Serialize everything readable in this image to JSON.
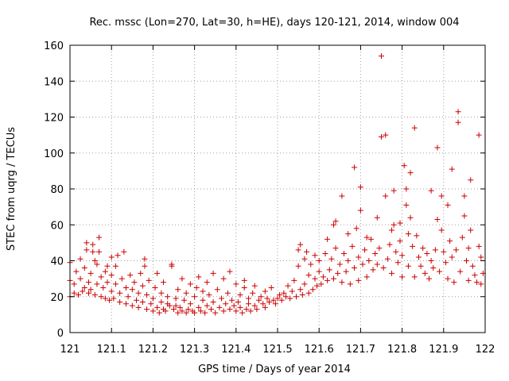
{
  "chart_data": {
    "type": "scatter",
    "title": "Rec. mssc (Lon=270, Lat=30, h=HE), days 120-121, 2014, window 004",
    "xlabel": "GPS time / Days of year 2014",
    "ylabel": "STEC from uqrg / TECUs",
    "xlim": [
      121,
      122
    ],
    "ylim": [
      0,
      160
    ],
    "xticks": [
      121,
      121.1,
      121.2,
      121.3,
      121.4,
      121.5,
      121.6,
      121.7,
      121.8,
      121.9,
      122
    ],
    "yticks": [
      0,
      20,
      40,
      60,
      80,
      100,
      120,
      140,
      160
    ],
    "xtick_labels": [
      "121",
      "121.1",
      "121.2",
      "121.3",
      "121.4",
      "121.5",
      "121.6",
      "121.7",
      "121.8",
      "121.9",
      "122"
    ],
    "ytick_labels": [
      "0",
      "20",
      "40",
      "60",
      "80",
      "100",
      "120",
      "140",
      "160"
    ],
    "grid": true,
    "marker": "+",
    "color": "#cc0000",
    "series": [
      {
        "name": "STEC",
        "points": [
          [
            121.0,
            20
          ],
          [
            121.0,
            29
          ],
          [
            121.0,
            39
          ],
          [
            121.01,
            22
          ],
          [
            121.01,
            27
          ],
          [
            121.015,
            34
          ],
          [
            121.02,
            21
          ],
          [
            121.025,
            30
          ],
          [
            121.025,
            41
          ],
          [
            121.03,
            23
          ],
          [
            121.035,
            25
          ],
          [
            121.035,
            36
          ],
          [
            121.04,
            46
          ],
          [
            121.04,
            50
          ],
          [
            121.045,
            22
          ],
          [
            121.045,
            28
          ],
          [
            121.05,
            24
          ],
          [
            121.05,
            33
          ],
          [
            121.055,
            45
          ],
          [
            121.055,
            49
          ],
          [
            121.06,
            21
          ],
          [
            121.06,
            40
          ],
          [
            121.065,
            27
          ],
          [
            121.065,
            38
          ],
          [
            121.07,
            53
          ],
          [
            121.07,
            45
          ],
          [
            121.075,
            20
          ],
          [
            121.075,
            31
          ],
          [
            121.08,
            25
          ],
          [
            121.085,
            19
          ],
          [
            121.085,
            34
          ],
          [
            121.09,
            28
          ],
          [
            121.09,
            37
          ],
          [
            121.095,
            18
          ],
          [
            121.1,
            23
          ],
          [
            121.1,
            32
          ],
          [
            121.1,
            42
          ],
          [
            121.105,
            19
          ],
          [
            121.11,
            27
          ],
          [
            121.11,
            37
          ],
          [
            121.115,
            43
          ],
          [
            121.12,
            17
          ],
          [
            121.12,
            22
          ],
          [
            121.125,
            30
          ],
          [
            121.13,
            45
          ],
          [
            121.135,
            16
          ],
          [
            121.135,
            25
          ],
          [
            121.14,
            20
          ],
          [
            121.145,
            32
          ],
          [
            121.15,
            15
          ],
          [
            121.15,
            24
          ],
          [
            121.155,
            28
          ],
          [
            121.16,
            18
          ],
          [
            121.165,
            14
          ],
          [
            121.165,
            22
          ],
          [
            121.17,
            33
          ],
          [
            121.175,
            17
          ],
          [
            121.175,
            26
          ],
          [
            121.18,
            41
          ],
          [
            121.18,
            37
          ],
          [
            121.185,
            13
          ],
          [
            121.185,
            21
          ],
          [
            121.19,
            29
          ],
          [
            121.195,
            16
          ],
          [
            121.2,
            12
          ],
          [
            121.2,
            19
          ],
          [
            121.205,
            25
          ],
          [
            121.21,
            14
          ],
          [
            121.21,
            33
          ],
          [
            121.215,
            11
          ],
          [
            121.22,
            17
          ],
          [
            121.22,
            22
          ],
          [
            121.225,
            13
          ],
          [
            121.225,
            28
          ],
          [
            121.23,
            12
          ],
          [
            121.235,
            16
          ],
          [
            121.235,
            20
          ],
          [
            121.24,
            15
          ],
          [
            121.245,
            37
          ],
          [
            121.245,
            38
          ],
          [
            121.25,
            13
          ],
          [
            121.255,
            15
          ],
          [
            121.255,
            19
          ],
          [
            121.26,
            11
          ],
          [
            121.26,
            24
          ],
          [
            121.265,
            14
          ],
          [
            121.27,
            12
          ],
          [
            121.27,
            30
          ],
          [
            121.275,
            18
          ],
          [
            121.28,
            11
          ],
          [
            121.28,
            22
          ],
          [
            121.285,
            13
          ],
          [
            121.29,
            16
          ],
          [
            121.29,
            27
          ],
          [
            121.295,
            12
          ],
          [
            121.3,
            11
          ],
          [
            121.3,
            20
          ],
          [
            121.305,
            25
          ],
          [
            121.31,
            14
          ],
          [
            121.31,
            31
          ],
          [
            121.315,
            12
          ],
          [
            121.32,
            18
          ],
          [
            121.32,
            23
          ],
          [
            121.325,
            11
          ],
          [
            121.33,
            15
          ],
          [
            121.33,
            28
          ],
          [
            121.335,
            21
          ],
          [
            121.34,
            13
          ],
          [
            121.345,
            17
          ],
          [
            121.345,
            33
          ],
          [
            121.35,
            11
          ],
          [
            121.355,
            24
          ],
          [
            121.36,
            14
          ],
          [
            121.365,
            19
          ],
          [
            121.37,
            12
          ],
          [
            121.37,
            30
          ],
          [
            121.375,
            16
          ],
          [
            121.38,
            22
          ],
          [
            121.385,
            13
          ],
          [
            121.385,
            34
          ],
          [
            121.39,
            18
          ],
          [
            121.395,
            15
          ],
          [
            121.4,
            12
          ],
          [
            121.4,
            27
          ],
          [
            121.405,
            17
          ],
          [
            121.41,
            14
          ],
          [
            121.41,
            21
          ],
          [
            121.415,
            11
          ],
          [
            121.42,
            25
          ],
          [
            121.42,
            29
          ],
          [
            121.425,
            13
          ],
          [
            121.43,
            16
          ],
          [
            121.43,
            19
          ],
          [
            121.435,
            12
          ],
          [
            121.44,
            22
          ],
          [
            121.445,
            15
          ],
          [
            121.445,
            26
          ],
          [
            121.45,
            13
          ],
          [
            121.455,
            18
          ],
          [
            121.46,
            20
          ],
          [
            121.465,
            16
          ],
          [
            121.47,
            14
          ],
          [
            121.47,
            23
          ],
          [
            121.475,
            19
          ],
          [
            121.48,
            17
          ],
          [
            121.485,
            25
          ],
          [
            121.49,
            18
          ],
          [
            121.495,
            16
          ],
          [
            121.5,
            19
          ],
          [
            121.505,
            21
          ],
          [
            121.51,
            18
          ],
          [
            121.515,
            22
          ],
          [
            121.52,
            20
          ],
          [
            121.525,
            26
          ],
          [
            121.53,
            19
          ],
          [
            121.535,
            23
          ],
          [
            121.54,
            29
          ],
          [
            121.545,
            20
          ],
          [
            121.55,
            37
          ],
          [
            121.55,
            46
          ],
          [
            121.555,
            24
          ],
          [
            121.555,
            49
          ],
          [
            121.56,
            21
          ],
          [
            121.565,
            27
          ],
          [
            121.565,
            41
          ],
          [
            121.57,
            45
          ],
          [
            121.575,
            22
          ],
          [
            121.575,
            32
          ],
          [
            121.58,
            38
          ],
          [
            121.585,
            24
          ],
          [
            121.59,
            30
          ],
          [
            121.59,
            43
          ],
          [
            121.595,
            26
          ],
          [
            121.6,
            34
          ],
          [
            121.6,
            40
          ],
          [
            121.605,
            27
          ],
          [
            121.61,
            31
          ],
          [
            121.615,
            44
          ],
          [
            121.62,
            29
          ],
          [
            121.62,
            52
          ],
          [
            121.625,
            35
          ],
          [
            121.63,
            41
          ],
          [
            121.635,
            30
          ],
          [
            121.635,
            60
          ],
          [
            121.64,
            62
          ],
          [
            121.64,
            47
          ],
          [
            121.645,
            33
          ],
          [
            121.65,
            38
          ],
          [
            121.655,
            76
          ],
          [
            121.655,
            28
          ],
          [
            121.66,
            44
          ],
          [
            121.665,
            34
          ],
          [
            121.67,
            55
          ],
          [
            121.67,
            40
          ],
          [
            121.675,
            27
          ],
          [
            121.68,
            48
          ],
          [
            121.685,
            92
          ],
          [
            121.685,
            36
          ],
          [
            121.69,
            58
          ],
          [
            121.695,
            29
          ],
          [
            121.695,
            42
          ],
          [
            121.7,
            81
          ],
          [
            121.7,
            68
          ],
          [
            121.705,
            38
          ],
          [
            121.71,
            46
          ],
          [
            121.715,
            53
          ],
          [
            121.715,
            31
          ],
          [
            121.72,
            40
          ],
          [
            121.725,
            52
          ],
          [
            121.73,
            35
          ],
          [
            121.735,
            44
          ],
          [
            121.74,
            64
          ],
          [
            121.74,
            38
          ],
          [
            121.745,
            47
          ],
          [
            121.75,
            154
          ],
          [
            121.75,
            109
          ],
          [
            121.755,
            36
          ],
          [
            121.76,
            110
          ],
          [
            121.76,
            76
          ],
          [
            121.765,
            41
          ],
          [
            121.77,
            49
          ],
          [
            121.775,
            57
          ],
          [
            121.775,
            33
          ],
          [
            121.78,
            79
          ],
          [
            121.78,
            60
          ],
          [
            121.785,
            45
          ],
          [
            121.79,
            39
          ],
          [
            121.795,
            61
          ],
          [
            121.795,
            51
          ],
          [
            121.8,
            31
          ],
          [
            121.8,
            43
          ],
          [
            121.805,
            93
          ],
          [
            121.81,
            80
          ],
          [
            121.81,
            71
          ],
          [
            121.815,
            55
          ],
          [
            121.815,
            37
          ],
          [
            121.82,
            89
          ],
          [
            121.82,
            64
          ],
          [
            121.825,
            48
          ],
          [
            121.83,
            114
          ],
          [
            121.83,
            31
          ],
          [
            121.835,
            54
          ],
          [
            121.84,
            42
          ],
          [
            121.845,
            37
          ],
          [
            121.85,
            47
          ],
          [
            121.855,
            33
          ],
          [
            121.86,
            44
          ],
          [
            121.865,
            30
          ],
          [
            121.87,
            79
          ],
          [
            121.87,
            40
          ],
          [
            121.875,
            36
          ],
          [
            121.88,
            46
          ],
          [
            121.885,
            103
          ],
          [
            121.885,
            63
          ],
          [
            121.89,
            34
          ],
          [
            121.895,
            76
          ],
          [
            121.895,
            57
          ],
          [
            121.9,
            45
          ],
          [
            121.905,
            39
          ],
          [
            121.91,
            71
          ],
          [
            121.91,
            30
          ],
          [
            121.915,
            51
          ],
          [
            121.92,
            91
          ],
          [
            121.92,
            42
          ],
          [
            121.925,
            28
          ],
          [
            121.93,
            46
          ],
          [
            121.935,
            123
          ],
          [
            121.935,
            117
          ],
          [
            121.94,
            34
          ],
          [
            121.945,
            53
          ],
          [
            121.95,
            65
          ],
          [
            121.95,
            76
          ],
          [
            121.955,
            40
          ],
          [
            121.96,
            29
          ],
          [
            121.96,
            47
          ],
          [
            121.965,
            85
          ],
          [
            121.965,
            57
          ],
          [
            121.97,
            37
          ],
          [
            121.975,
            32
          ],
          [
            121.98,
            28
          ],
          [
            121.985,
            110
          ],
          [
            121.985,
            48
          ],
          [
            121.99,
            42
          ],
          [
            121.99,
            27
          ],
          [
            121.995,
            33
          ]
        ]
      }
    ]
  }
}
